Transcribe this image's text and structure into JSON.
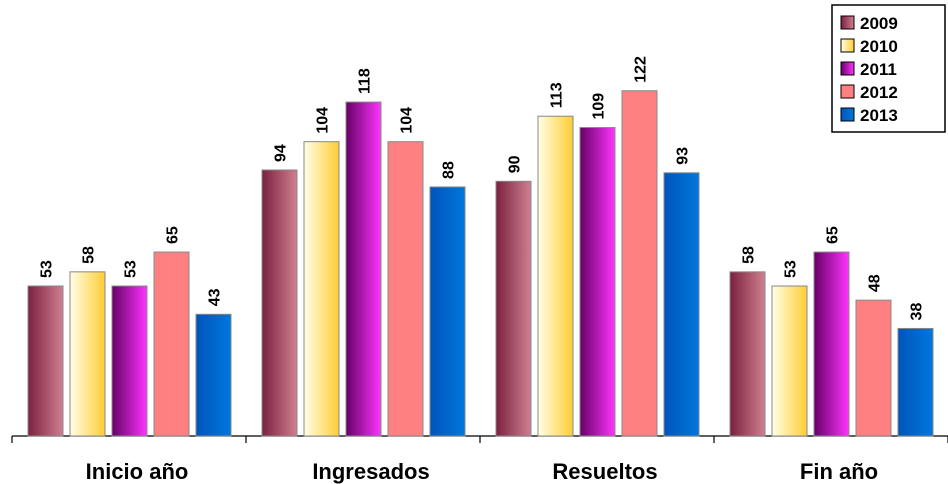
{
  "chart_data": {
    "type": "bar",
    "title": "",
    "xlabel": "",
    "ylabel": "",
    "ylim": [
      0,
      125
    ],
    "grid": false,
    "legend_position": "top-right",
    "categories": [
      "Inicio año",
      "Ingresados",
      "Resueltos",
      "Fin año"
    ],
    "series": [
      {
        "name": "2009",
        "values": [
          53,
          94,
          90,
          58
        ],
        "color": "#a0405e",
        "gradient": [
          "#7a2040",
          "#d08090"
        ]
      },
      {
        "name": "2010",
        "values": [
          58,
          104,
          113,
          53
        ],
        "color": "#ffd966",
        "gradient": [
          "#ffffe8",
          "#ffcc33"
        ]
      },
      {
        "name": "2011",
        "values": [
          53,
          118,
          109,
          65
        ],
        "color": "#cc00cc",
        "gradient": [
          "#660066",
          "#ff33ff"
        ]
      },
      {
        "name": "2012",
        "values": [
          65,
          104,
          122,
          48
        ],
        "color": "#ff8080",
        "gradient": [
          "#ff8080",
          "#ff8080"
        ]
      },
      {
        "name": "2013",
        "values": [
          43,
          88,
          93,
          38
        ],
        "color": "#0066cc",
        "gradient": [
          "#0055bb",
          "#0077dd"
        ]
      }
    ]
  }
}
